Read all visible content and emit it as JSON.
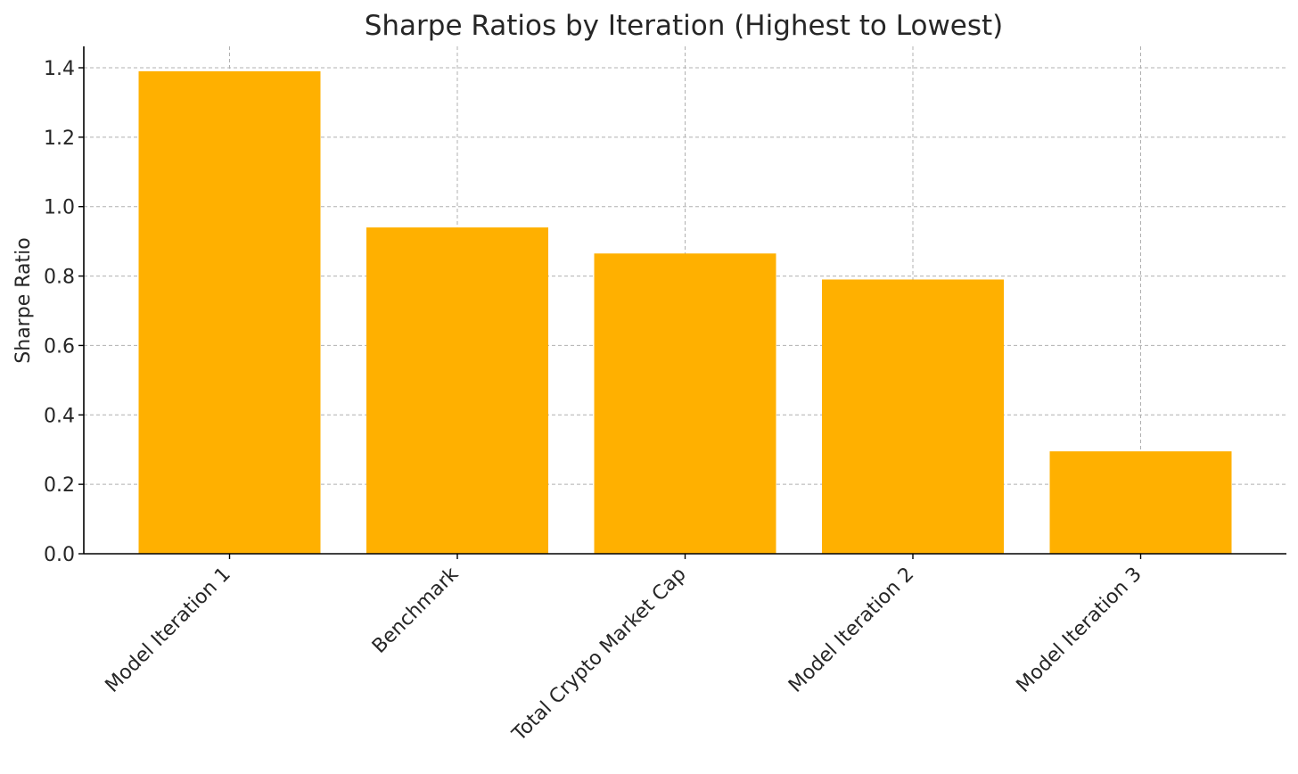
{
  "chart_data": {
    "type": "bar",
    "title": "Sharpe Ratios by Iteration (Highest to Lowest)",
    "xlabel": "",
    "ylabel": "Sharpe Ratio",
    "categories": [
      "Model Iteration 1",
      "Benchmark",
      "Total Crypto Market Cap",
      "Model Iteration 2",
      "Model Iteration 3"
    ],
    "values": [
      1.39,
      0.94,
      0.865,
      0.79,
      0.295
    ],
    "ylim": [
      0,
      1.4
    ],
    "yticks": [
      "0.0",
      "0.2",
      "0.4",
      "0.6",
      "0.8",
      "1.0",
      "1.2",
      "1.4"
    ],
    "grid": true,
    "bar_color": "#FFB000"
  }
}
